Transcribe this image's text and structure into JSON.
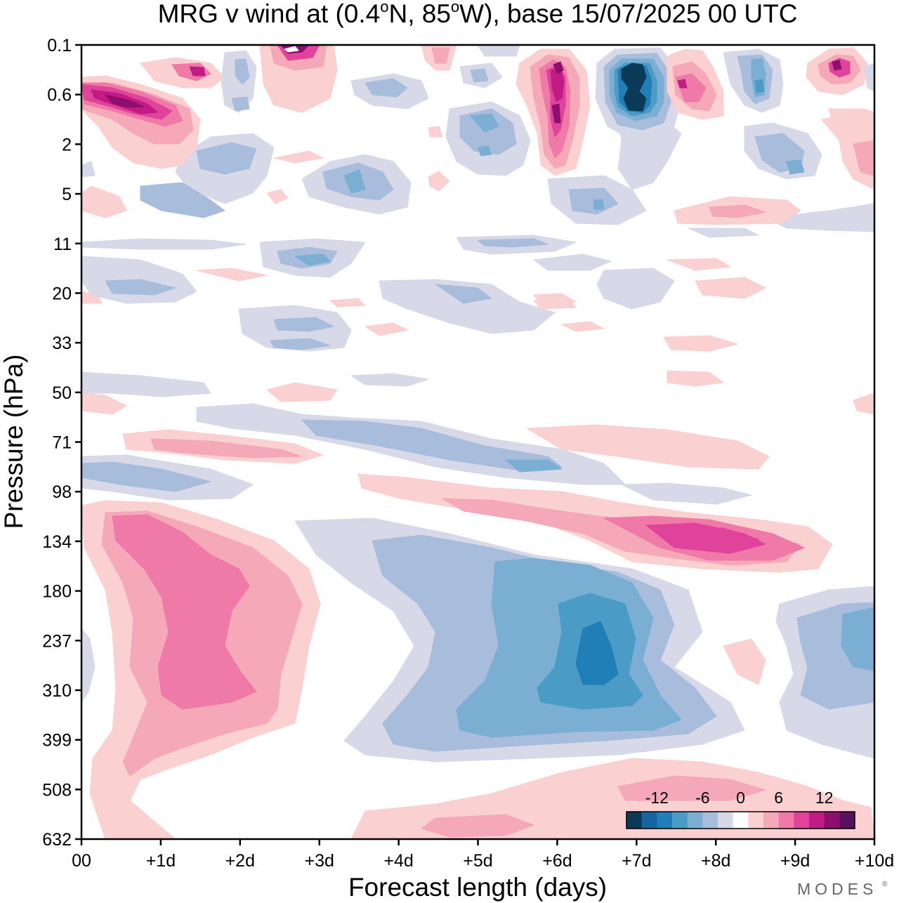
{
  "chart_data": {
    "type": "heatmap",
    "plot_kind": "filled-contour",
    "title": "MRG v wind at (0.4°N, 85°W),  base 15/07/2025  00 UTC",
    "title_parts": {
      "prefix": "MRG v wind at (0.4",
      "sup1": "o",
      "mid": "N, 85",
      "sup2": "o",
      "suffix": "W),  base 15/07/2025  00 UTC"
    },
    "xlabel": "Forecast length (days)",
    "ylabel": "Pressure (hPa)",
    "x_tick_labels": [
      "00",
      "+1d",
      "+2d",
      "+3d",
      "+4d",
      "+5d",
      "+6d",
      "+7d",
      "+8d",
      "+9d",
      "+10d"
    ],
    "x_range_days": [
      0,
      10
    ],
    "y_tick_labels": [
      "0.1",
      "0.6",
      "2",
      "5",
      "11",
      "20",
      "33",
      "50",
      "71",
      "98",
      "134",
      "180",
      "237",
      "310",
      "399",
      "508",
      "632"
    ],
    "y_axis": "pressure levels, decreasing upward (0.1 hPa at top, 632 hPa at bottom)",
    "grid": false,
    "colorbar": {
      "placement": "bottom-right, inside plot",
      "labels": [
        "-12",
        "-6",
        "0",
        "6",
        "12"
      ],
      "label_values": [
        -12,
        -6,
        0,
        6,
        12
      ],
      "levels": [
        -14,
        -12,
        -10,
        -8,
        -6,
        -4,
        -2,
        2,
        4,
        6,
        8,
        10,
        12,
        14
      ],
      "colors": [
        "#0a3a58",
        "#1565a0",
        "#1f7fb6",
        "#4a9bc6",
        "#7aaed3",
        "#a8bcdc",
        "#d7d8e8",
        "#ffffff",
        "#fbd0d0",
        "#f5a8b8",
        "#ef7aa8",
        "#e0449a",
        "#c01c83",
        "#8c0e6e",
        "#5a1060"
      ]
    },
    "features": [
      {
        "name": "upper-troposphere easterly-phase negative lobe",
        "x": [
          3.2,
          9.9
        ],
        "p": [
          134,
          508
        ],
        "value": -8
      },
      {
        "name": "upper-troposphere negative core",
        "x": [
          6.5,
          6.5
        ],
        "p": [
          237,
          310
        ],
        "value": -11
      },
      {
        "name": "upper-troposphere positive lobe",
        "x": [
          0.1,
          3.0
        ],
        "p": [
          98,
          550
        ],
        "value": 7
      },
      {
        "name": "upper-troposphere positive core",
        "x": [
          1.0,
          2.1
        ],
        "p": [
          134,
          310
        ],
        "value": 9
      },
      {
        "name": "lower-stratosphere positive band",
        "x": [
          6.5,
          9.5
        ],
        "p": [
          110,
          160
        ],
        "value": 9
      },
      {
        "name": "lower-stratosphere negative band",
        "x": [
          1.5,
          7.5
        ],
        "p": [
          55,
          95
        ],
        "value": -4
      },
      {
        "name": "stratospheric negative core near +7d",
        "x": [
          7.0,
          7.0
        ],
        "p": [
          0.2,
          1.2
        ],
        "value": -14
      },
      {
        "name": "stratospheric positive core near +6d",
        "x": [
          6.0,
          6.0
        ],
        "p": [
          0.2,
          2.5
        ],
        "value": 12
      },
      {
        "name": "stratospheric positive core near 00-1d",
        "x": [
          0.0,
          1.2
        ],
        "p": [
          0.5,
          1.0
        ],
        "value": 13
      },
      {
        "name": "near-surface positive band",
        "x": [
          3.5,
          10.0
        ],
        "p": [
          500,
          632
        ],
        "value": 3
      }
    ]
  },
  "logo": "MODES"
}
